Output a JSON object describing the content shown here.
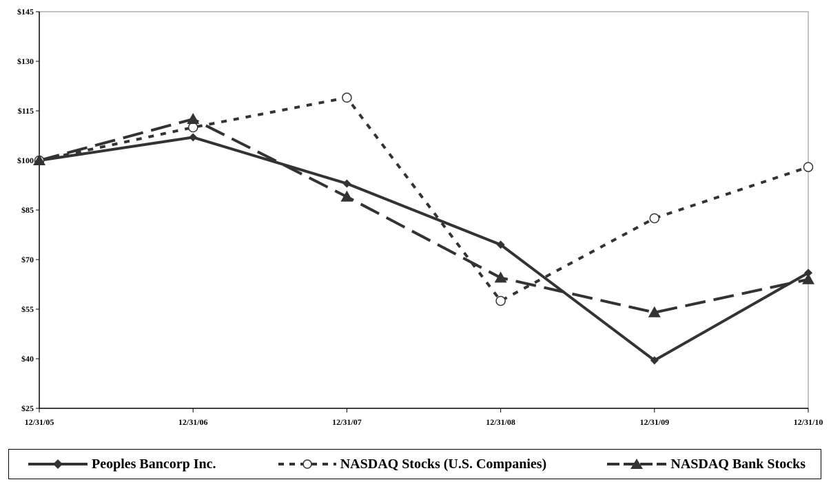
{
  "chart_data": {
    "type": "line",
    "title": "",
    "xlabel": "",
    "ylabel": "",
    "categories": [
      "12/31/05",
      "12/31/06",
      "12/31/07",
      "12/31/08",
      "12/31/09",
      "12/31/10"
    ],
    "y_ticks": [
      "$25",
      "$40",
      "$55",
      "$70",
      "$85",
      "$100",
      "$115",
      "$130",
      "$145"
    ],
    "ylim": [
      25,
      145
    ],
    "grid": false,
    "legend_position": "bottom",
    "series": [
      {
        "name": "Peoples Bancorp Inc.",
        "values": [
          100,
          107,
          93,
          74.5,
          39.5,
          66
        ],
        "style": "solid",
        "marker": "diamond",
        "color": "#333333"
      },
      {
        "name": "NASDAQ Stocks (U.S. Companies)",
        "values": [
          100,
          110,
          119,
          57.5,
          82.5,
          98
        ],
        "style": "dotted",
        "marker": "circle-open",
        "color": "#333333"
      },
      {
        "name": "NASDAQ Bank Stocks",
        "values": [
          100,
          112.5,
          89,
          64.5,
          54,
          64
        ],
        "style": "dashed",
        "marker": "triangle",
        "color": "#333333"
      }
    ]
  }
}
